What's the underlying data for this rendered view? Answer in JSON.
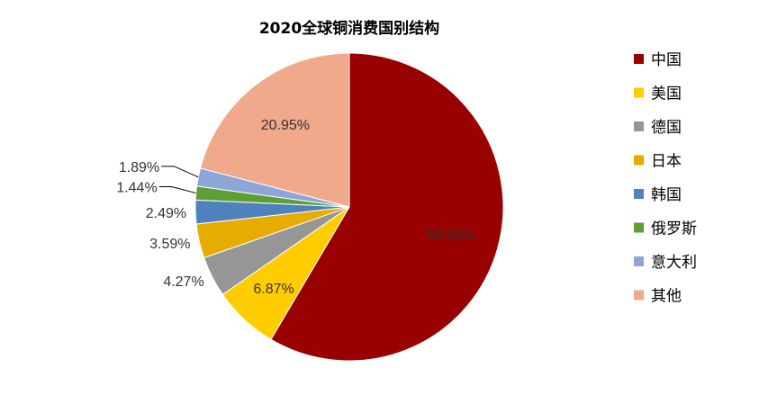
{
  "chart_data": {
    "type": "pie",
    "title": "2020全球铜消费国别结构",
    "legend_position": "right",
    "slices": [
      {
        "label": "中国",
        "value": 58.5,
        "display": "58.50%",
        "color": "#990000"
      },
      {
        "label": "美国",
        "value": 6.87,
        "display": "6.87%",
        "color": "#ffcc00"
      },
      {
        "label": "德国",
        "value": 4.27,
        "display": "4.27%",
        "color": "#969696"
      },
      {
        "label": "日本",
        "value": 3.59,
        "display": "3.59%",
        "color": "#e6ac00"
      },
      {
        "label": "韩国",
        "value": 2.49,
        "display": "2.49%",
        "color": "#4f81bd"
      },
      {
        "label": "俄罗斯",
        "value": 1.44,
        "display": "1.44%",
        "color": "#5d9e35"
      },
      {
        "label": "意大利",
        "value": 1.89,
        "display": "1.89%",
        "color": "#8fa5d8"
      },
      {
        "label": "其他",
        "value": 20.95,
        "display": "20.95%",
        "color": "#f0a98a"
      }
    ]
  }
}
